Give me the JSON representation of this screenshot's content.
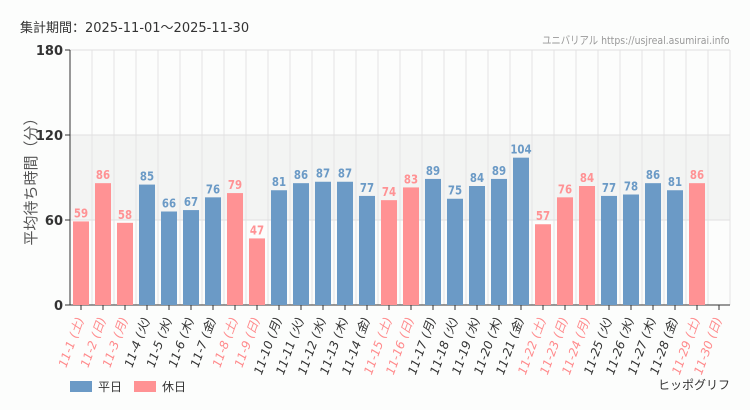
{
  "header": {
    "period": "集計期間：2025-11-01～2025-11-30",
    "site": "ユニバリアル  https://usjreal.asumirai.info"
  },
  "footer": {
    "brand": "ヒッポグリフ"
  },
  "legend": {
    "weekday": "平日",
    "holiday": "休日"
  },
  "colors": {
    "weekday": "#6b9ac6",
    "holiday": "#ff9294",
    "holiday_text": "#ff8a8c",
    "weekday_text": "#333333",
    "band": "#f3f4f3"
  },
  "chart_data": {
    "type": "bar",
    "ylabel": "平均待ち時間（分）",
    "ylim": [
      0,
      180
    ],
    "yticks": [
      0,
      60,
      120,
      180
    ],
    "grid": true,
    "legend_position": "bottom-left",
    "categories": [
      "11-1 (土)",
      "11-2 (日)",
      "11-3 (月)",
      "11-4 (火)",
      "11-5 (水)",
      "11-6 (木)",
      "11-7 (金)",
      "11-8 (土)",
      "11-9 (日)",
      "11-10 (月)",
      "11-11 (火)",
      "11-12 (水)",
      "11-13 (木)",
      "11-14 (金)",
      "11-15 (土)",
      "11-16 (日)",
      "11-17 (月)",
      "11-18 (火)",
      "11-19 (水)",
      "11-20 (木)",
      "11-21 (金)",
      "11-22 (土)",
      "11-23 (日)",
      "11-24 (月)",
      "11-25 (火)",
      "11-26 (水)",
      "11-27 (木)",
      "11-28 (金)",
      "11-29 (土)",
      "11-30 (日)"
    ],
    "holiday": [
      true,
      true,
      true,
      false,
      false,
      false,
      false,
      true,
      true,
      false,
      false,
      false,
      false,
      false,
      true,
      true,
      false,
      false,
      false,
      false,
      false,
      true,
      true,
      true,
      false,
      false,
      false,
      false,
      true,
      true
    ],
    "values": [
      59,
      86,
      58,
      85,
      66,
      67,
      76,
      79,
      47,
      81,
      86,
      87,
      87,
      77,
      74,
      83,
      89,
      75,
      84,
      89,
      104,
      57,
      76,
      84,
      77,
      78,
      86,
      81,
      86,
      null
    ]
  }
}
